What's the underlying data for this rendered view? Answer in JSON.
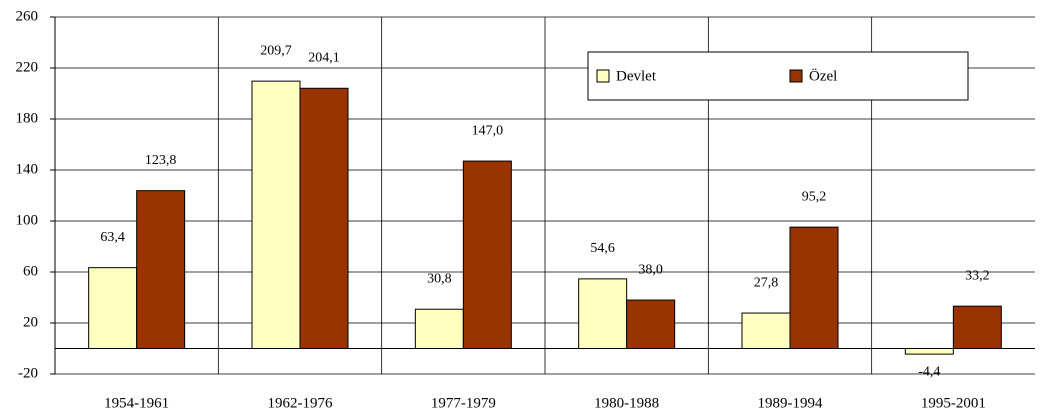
{
  "chart_data": {
    "type": "bar",
    "categories": [
      "1954-1961",
      "1962-1976",
      "1977-1979",
      "1980-1988",
      "1989-1994",
      "1995-2001"
    ],
    "series": [
      {
        "name": "Devlet",
        "color": "#ffffc0",
        "values": [
          63.4,
          209.7,
          30.8,
          54.6,
          27.8,
          -4.4
        ],
        "value_labels": [
          "63,4",
          "209,7",
          "30,8",
          "54,6",
          "27,8",
          "-4,4"
        ]
      },
      {
        "name": "Özel",
        "color": "#993300",
        "values": [
          123.8,
          204.1,
          147.0,
          38.0,
          95.2,
          33.2
        ],
        "value_labels": [
          "123,8",
          "204,1",
          "147,0",
          "38,0",
          "95,2",
          "33,2"
        ]
      }
    ],
    "ylim": [
      -20,
      260
    ],
    "yticks": [
      -20,
      20,
      60,
      100,
      140,
      180,
      220,
      260
    ],
    "grid": true,
    "legend": "upper right"
  }
}
